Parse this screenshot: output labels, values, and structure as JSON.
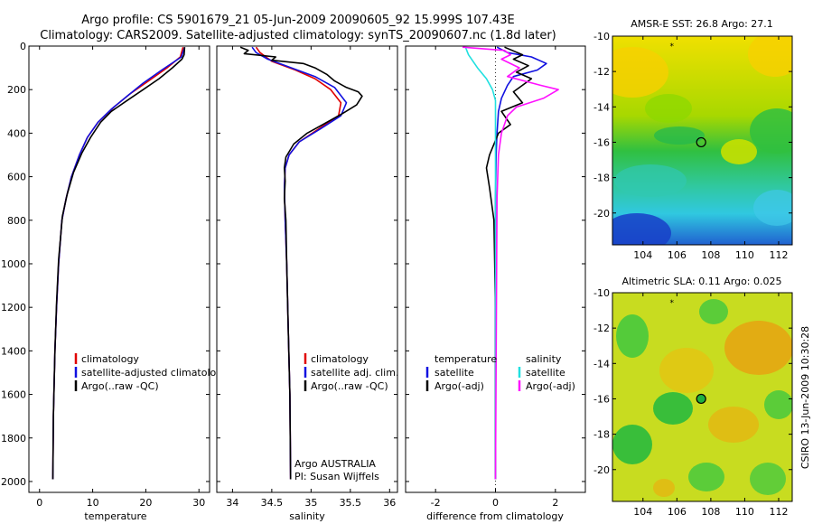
{
  "figure": {
    "title_line1": "Argo profile: CS 5901679_21 05-Jun-2009 20090605_92 15.999S 107.43E",
    "title_line2": "Climatology: CARS2009. Satellite-adjusted climatology: synTS_20090607.nc (1.8d later)",
    "side_label": "CSIRO 13-Jun-2009 10:30:28"
  },
  "colors": {
    "climatology": "#e00000",
    "satellite": "#1010e0",
    "argo": "#000000",
    "salinity_satellite": "#20e0e0",
    "salinity_argo": "#ff10ff"
  },
  "chart_data": [
    {
      "id": "temperature",
      "type": "line",
      "xlabel": "temperature",
      "ylabel": "",
      "xlim": [
        -2,
        32
      ],
      "ylim": [
        2050,
        0
      ],
      "xticks": [
        0,
        10,
        20,
        30
      ],
      "yticks": [
        0,
        200,
        400,
        600,
        800,
        1000,
        1200,
        1400,
        1600,
        1800,
        2000
      ],
      "legend": [
        "climatology",
        "satellite-adjusted climatology",
        "Argo(..raw -QC)"
      ],
      "series": [
        {
          "name": "climatology",
          "color": "#e00000",
          "x": [
            27.0,
            26.5,
            24,
            20.5,
            17,
            14,
            11,
            9,
            7.5,
            6.0,
            5.0,
            4.2,
            3.6,
            3.2,
            2.9,
            2.6,
            2.5
          ],
          "y": [
            5,
            50,
            100,
            160,
            220,
            280,
            350,
            420,
            500,
            600,
            700,
            800,
            1000,
            1200,
            1400,
            1700,
            1990
          ]
        },
        {
          "name": "satellite-adjusted climatology",
          "color": "#1010e0",
          "x": [
            27.3,
            26.7,
            23,
            19.5,
            16.5,
            13.5,
            11,
            9,
            7.5,
            6.0,
            5.0,
            4.2,
            3.6,
            3.2,
            2.9,
            2.6,
            2.5
          ],
          "y": [
            5,
            50,
            110,
            170,
            230,
            290,
            350,
            420,
            500,
            600,
            700,
            800,
            1000,
            1200,
            1400,
            1700,
            1990
          ]
        },
        {
          "name": "Argo(..raw -QC)",
          "color": "#000000",
          "x": [
            27.3,
            27.2,
            26.8,
            25,
            22.5,
            19.5,
            16.5,
            13.5,
            11.5,
            9.6,
            8.0,
            6.4,
            5.2,
            4.3,
            3.6,
            3.2,
            2.9,
            2.6,
            2.5
          ],
          "y": [
            5,
            40,
            60,
            100,
            150,
            200,
            250,
            300,
            350,
            420,
            490,
            580,
            680,
            780,
            980,
            1180,
            1400,
            1700,
            1990
          ]
        }
      ]
    },
    {
      "id": "salinity",
      "type": "line",
      "xlabel": "salinity",
      "ylabel": "",
      "xlim": [
        33.8,
        36.1
      ],
      "ylim": [
        2050,
        0
      ],
      "xticks": [
        34,
        34.5,
        35,
        35.5,
        36
      ],
      "yticks": [
        0,
        200,
        400,
        600,
        800,
        1000,
        1200,
        1400,
        1600,
        1800,
        2000
      ],
      "legend": [
        "climatology",
        "satellite adj. clim.",
        "Argo(..raw -QC)"
      ],
      "annotations": [
        "Argo AUSTRALIA",
        "PI: Susan Wijffels"
      ],
      "series": [
        {
          "name": "climatology",
          "color": "#e00000",
          "x": [
            34.3,
            34.35,
            34.5,
            34.8,
            35.05,
            35.25,
            35.38,
            35.35,
            35.1,
            34.85,
            34.72,
            34.67,
            34.66,
            34.67,
            34.69,
            34.71,
            34.73,
            34.74
          ],
          "y": [
            5,
            30,
            70,
            110,
            150,
            200,
            260,
            320,
            380,
            440,
            500,
            560,
            650,
            800,
            1000,
            1300,
            1600,
            1990
          ]
        },
        {
          "name": "satellite adj. clim.",
          "color": "#1010e0",
          "x": [
            34.25,
            34.3,
            34.45,
            34.75,
            35.05,
            35.3,
            35.45,
            35.38,
            35.12,
            34.85,
            34.72,
            34.67,
            34.66,
            34.67,
            34.69,
            34.71,
            34.73,
            34.74
          ],
          "y": [
            5,
            30,
            60,
            100,
            140,
            190,
            260,
            320,
            380,
            440,
            500,
            560,
            650,
            800,
            1000,
            1300,
            1600,
            1990
          ]
        },
        {
          "name": "Argo(..raw -QC)",
          "color": "#000000",
          "x": [
            34.1,
            34.2,
            34.15,
            34.55,
            34.5,
            34.9,
            35.05,
            35.2,
            35.3,
            35.45,
            35.6,
            35.65,
            35.58,
            35.4,
            35.15,
            34.95,
            34.78,
            34.68,
            34.66,
            34.67,
            34.66,
            34.68,
            34.69,
            34.71,
            34.73,
            34.74
          ],
          "y": [
            5,
            20,
            35,
            50,
            65,
            80,
            100,
            130,
            160,
            190,
            210,
            230,
            270,
            310,
            360,
            400,
            450,
            510,
            560,
            620,
            700,
            800,
            1000,
            1300,
            1600,
            1990
          ]
        }
      ]
    },
    {
      "id": "difference",
      "type": "line",
      "xlabel": "difference from climatology",
      "ylabel": "",
      "xlim": [
        -3,
        3
      ],
      "ylim": [
        2050,
        0
      ],
      "xticks": [
        -2,
        0,
        2
      ],
      "yticks": [
        0,
        200,
        400,
        600,
        800,
        1000,
        1200,
        1400,
        1600,
        1800,
        2000
      ],
      "legend_temperature_header": "temperature",
      "legend_salinity_header": "salinity",
      "legend": [
        "satellite",
        "Argo(-adj)",
        "satellite",
        "Argo(-adj)"
      ],
      "series": [
        {
          "name": "temperature satellite",
          "color": "#1010e0",
          "x": [
            0.05,
            0.4,
            1.2,
            1.7,
            1.4,
            0.6,
            0.4,
            0.2,
            0.1,
            0.05,
            0.02,
            0.0,
            0.0,
            0.0
          ],
          "y": [
            5,
            30,
            50,
            80,
            110,
            140,
            180,
            240,
            300,
            400,
            500,
            700,
            1000,
            1990
          ]
        },
        {
          "name": "temperature Argo(-adj)",
          "color": "#000000",
          "x": [
            0.3,
            0.9,
            0.6,
            1.1,
            0.7,
            1.2,
            0.9,
            0.6,
            0.9,
            0.2,
            0.5,
            0.1,
            -0.2,
            -0.3,
            -0.2,
            -0.05,
            0.0,
            0.0
          ],
          "y": [
            5,
            40,
            60,
            90,
            120,
            150,
            180,
            210,
            260,
            300,
            360,
            400,
            500,
            560,
            650,
            800,
            1200,
            1990
          ]
        },
        {
          "name": "salinity satellite",
          "color": "#20e0e0",
          "x": [
            -1.0,
            -0.9,
            -0.6,
            -0.3,
            -0.1,
            0.0,
            0.0,
            0.0,
            0.0,
            0.0
          ],
          "y": [
            5,
            40,
            100,
            150,
            200,
            250,
            300,
            500,
            1000,
            1990
          ]
        },
        {
          "name": "salinity Argo(-adj)",
          "color": "#ff10ff",
          "x": [
            -1.1,
            0.3,
            0.5,
            0.2,
            0.8,
            0.4,
            1.5,
            2.1,
            1.6,
            0.7,
            0.4,
            0.2,
            0.1,
            0.05,
            0.0
          ],
          "y": [
            5,
            20,
            40,
            60,
            100,
            140,
            180,
            200,
            240,
            280,
            320,
            400,
            500,
            700,
            1990
          ]
        }
      ]
    },
    {
      "id": "sst_map",
      "type": "heatmap",
      "title": "AMSR-E SST: 26.8 Argo: 27.1",
      "xlim": [
        102.2,
        112.8
      ],
      "ylim": [
        -21.8,
        -10
      ],
      "xticks": [
        104,
        106,
        108,
        110,
        112
      ],
      "yticks": [
        -10,
        -12,
        -14,
        -16,
        -18,
        -20
      ],
      "float_marker": [
        107.43,
        -15.999
      ],
      "origin_marker": [
        105.7,
        -10.5
      ]
    },
    {
      "id": "sla_map",
      "type": "heatmap",
      "title": "Altimetric SLA: 0.11 Argo: 0.025",
      "xlim": [
        102.2,
        112.8
      ],
      "ylim": [
        -21.8,
        -10
      ],
      "xticks": [
        104,
        106,
        108,
        110,
        112
      ],
      "yticks": [
        -10,
        -12,
        -14,
        -16,
        -18,
        -20
      ],
      "float_marker": [
        107.43,
        -15.999
      ],
      "origin_marker": [
        105.7,
        -10.5
      ]
    }
  ]
}
